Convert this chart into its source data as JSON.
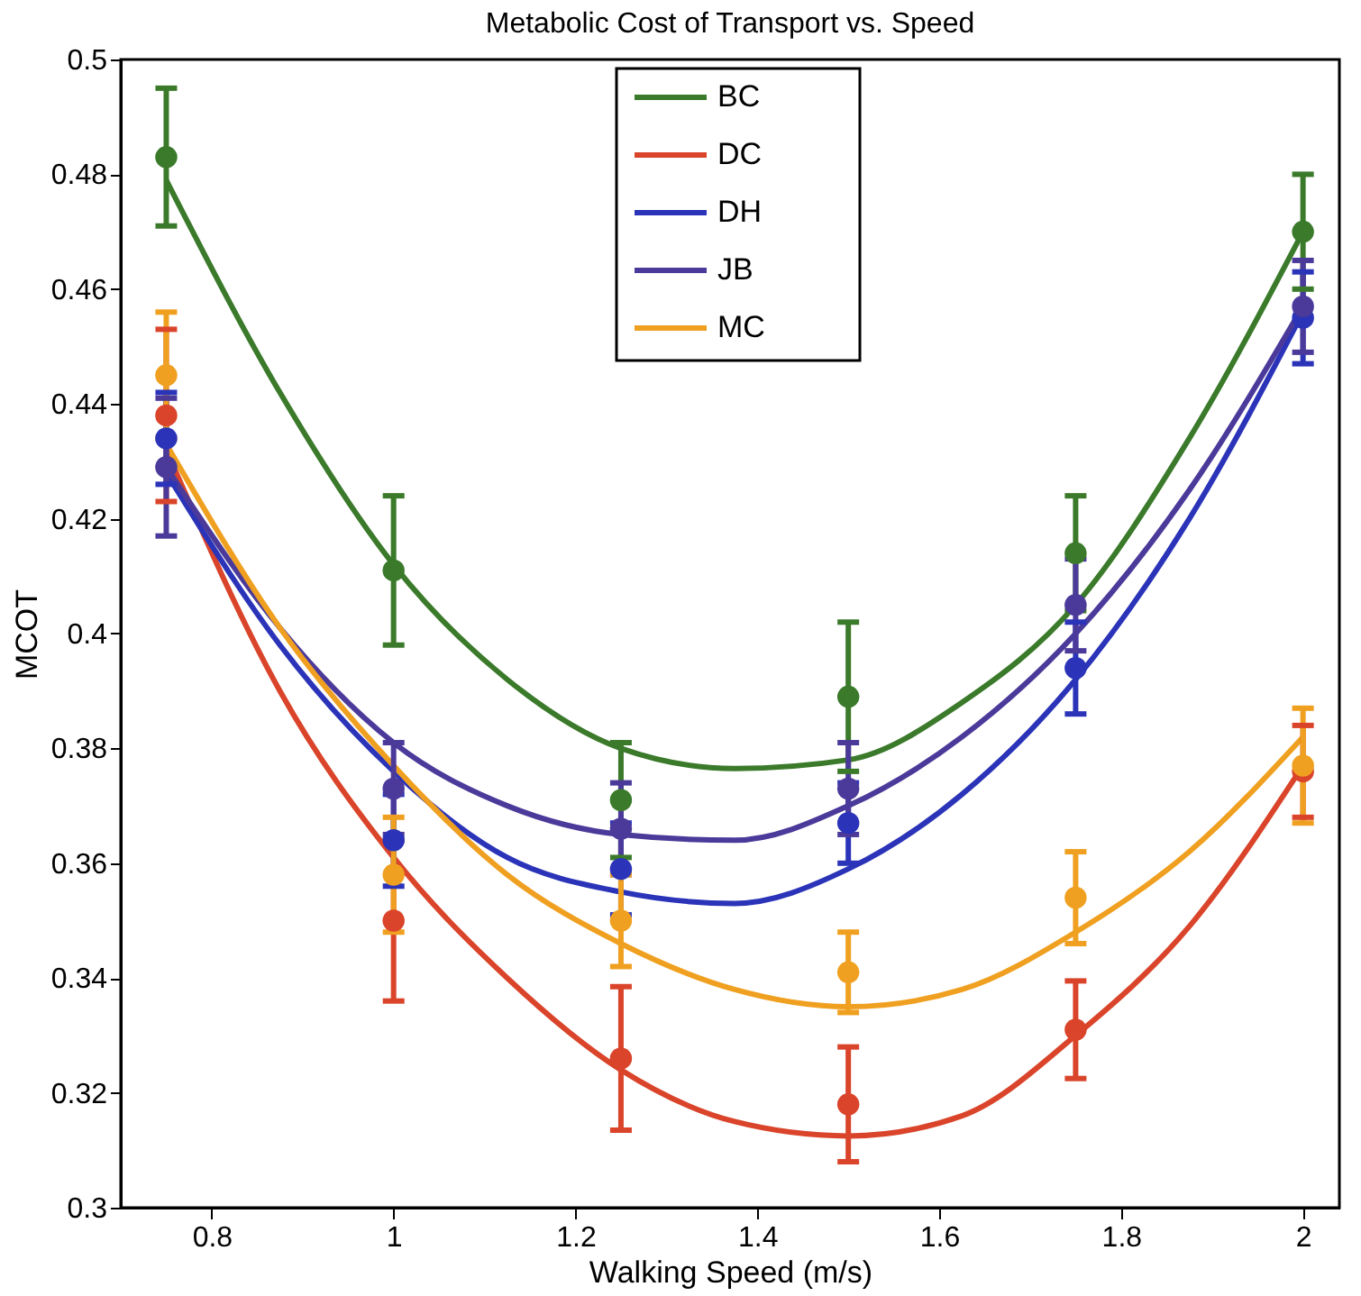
{
  "chart_data": {
    "type": "scatter",
    "title": "Metabolic Cost of Transport vs. Speed",
    "xlabel": "Walking Speed (m/s)",
    "ylabel": "MCOT",
    "x": [
      0.75,
      1,
      1.25,
      1.5,
      1.75,
      2
    ],
    "xlim": [
      0.7,
      2.04
    ],
    "xticks": [
      0.8,
      1,
      1.2,
      1.4,
      1.6,
      1.8,
      2
    ],
    "ylim": [
      0.3,
      0.5
    ],
    "yticks": [
      0.3,
      0.32,
      0.34,
      0.36,
      0.38,
      0.4,
      0.42,
      0.44,
      0.46,
      0.48,
      0.5
    ],
    "grid": false,
    "legend": "top",
    "marker": "circle",
    "series": [
      {
        "name": "BC",
        "color": "#3a7a2a",
        "values": [
          0.483,
          0.411,
          0.371,
          0.389,
          0.414,
          0.47
        ],
        "errors": [
          0.012,
          0.013,
          0.01,
          0.013,
          0.01,
          0.01
        ]
      },
      {
        "name": "DC",
        "color": "#d9442a",
        "values": [
          0.438,
          0.35,
          0.326,
          0.318,
          0.331,
          0.376
        ],
        "errors": [
          0.015,
          0.014,
          0.0125,
          0.01,
          0.0085,
          0.008
        ]
      },
      {
        "name": "DH",
        "color": "#2b34b8",
        "values": [
          0.434,
          0.364,
          0.359,
          0.367,
          0.394,
          0.455
        ],
        "errors": [
          0.008,
          0.008,
          0.008,
          0.007,
          0.008,
          0.008
        ]
      },
      {
        "name": "JB",
        "color": "#4b3a9a",
        "values": [
          0.429,
          0.373,
          0.366,
          0.373,
          0.405,
          0.457
        ],
        "errors": [
          0.012,
          0.008,
          0.008,
          0.008,
          0.008,
          0.008
        ]
      },
      {
        "name": "MC",
        "color": "#f0a020",
        "values": [
          0.445,
          0.358,
          0.35,
          0.341,
          0.354,
          0.377
        ],
        "errors": [
          0.011,
          0.01,
          0.008,
          0.007,
          0.008,
          0.01
        ]
      },
      {
        "color": "#3a7a2a",
        "type": "line",
        "marker": "none",
        "x": [
          0.75,
          0.875,
          1,
          1.125,
          1.25,
          1.375,
          1.5,
          1.625,
          1.75,
          1.875,
          2
        ],
        "values": [
          0.479,
          0.442,
          0.412,
          0.392,
          0.38,
          0.3765,
          0.378,
          0.388,
          0.405,
          0.434,
          0.47
        ]
      },
      {
        "color": "#d9442a",
        "type": "line",
        "marker": "none",
        "x": [
          0.75,
          0.875,
          1,
          1.125,
          1.25,
          1.375,
          1.5,
          1.625,
          1.75,
          1.875,
          2
        ],
        "values": [
          0.432,
          0.39,
          0.361,
          0.34,
          0.324,
          0.315,
          0.3125,
          0.316,
          0.33,
          0.349,
          0.377
        ]
      },
      {
        "color": "#2b34b8",
        "type": "line",
        "marker": "none",
        "x": [
          0.75,
          0.875,
          1,
          1.125,
          1.25,
          1.375,
          1.5,
          1.625,
          1.75,
          1.875,
          2
        ],
        "values": [
          0.428,
          0.398,
          0.376,
          0.361,
          0.355,
          0.353,
          0.359,
          0.372,
          0.392,
          0.42,
          0.456
        ]
      },
      {
        "color": "#4b3a9a",
        "type": "line",
        "marker": "none",
        "x": [
          0.75,
          0.875,
          1,
          1.125,
          1.25,
          1.375,
          1.5,
          1.625,
          1.75,
          1.875,
          2
        ],
        "values": [
          0.429,
          0.401,
          0.381,
          0.37,
          0.365,
          0.364,
          0.37,
          0.382,
          0.4,
          0.425,
          0.457
        ]
      },
      {
        "color": "#f0a020",
        "type": "line",
        "marker": "none",
        "x": [
          0.75,
          0.875,
          1,
          1.125,
          1.25,
          1.375,
          1.5,
          1.625,
          1.75,
          1.875,
          2
        ],
        "values": [
          0.433,
          0.401,
          0.377,
          0.358,
          0.346,
          0.338,
          0.335,
          0.338,
          0.348,
          0.362,
          0.382
        ]
      }
    ]
  }
}
